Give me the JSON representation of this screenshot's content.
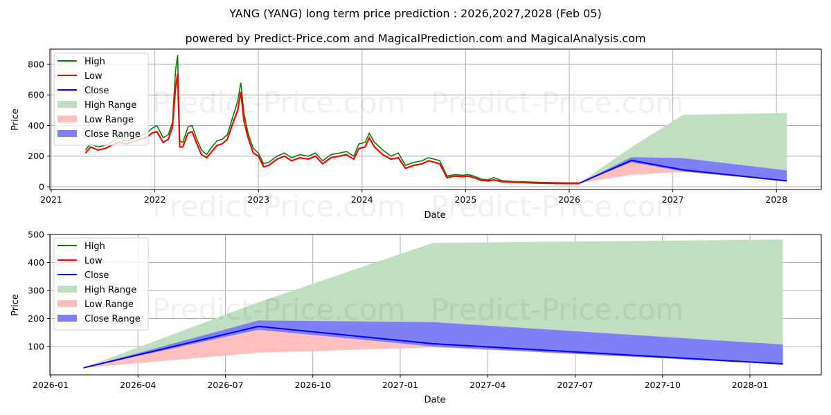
{
  "header": {
    "title": "YANG (YANG) long term price prediction : 2026,2027,2028 (Feb 05)",
    "subtitle": "powered by Predict-Price.com and MagicalPrediction.com and MagicalAnalysis.com"
  },
  "watermark": "Predict-Price.com",
  "colors": {
    "high": "#008000",
    "low": "#ff0000",
    "close": "#0000ff",
    "high_range": "#c0dec0",
    "low_range": "#ffbfbf",
    "close_range": "#7f7ff7",
    "grid": "#b0b0b0"
  },
  "legend": [
    {
      "label": "High",
      "kind": "line",
      "color": "#008000"
    },
    {
      "label": "Low",
      "kind": "line",
      "color": "#ff0000"
    },
    {
      "label": "Close",
      "kind": "line",
      "color": "#0000ff"
    },
    {
      "label": "High Range",
      "kind": "patch",
      "color": "#c0dec0"
    },
    {
      "label": "Low Range",
      "kind": "patch",
      "color": "#ffbfbf"
    },
    {
      "label": "Close Range",
      "kind": "patch",
      "color": "#7f7ff7"
    }
  ],
  "chart_data": [
    {
      "type": "line",
      "title": "YANG (YANG) long term price prediction : 2026,2027,2028 (Feb 05)",
      "xlabel": "Date",
      "ylabel": "Price",
      "ylim": [
        -15,
        900
      ],
      "xlim": [
        2020.99,
        2028.45
      ],
      "grid": true,
      "legend_position": "upper left",
      "x_ticks": [
        "2021",
        "2022",
        "2023",
        "2024",
        "2025",
        "2026",
        "2027",
        "2028"
      ],
      "y_ticks": [
        0,
        200,
        400,
        600,
        800
      ],
      "history": {
        "x": [
          2021.33,
          2021.38,
          2021.45,
          2021.52,
          2021.58,
          2021.65,
          2021.72,
          2021.78,
          2021.85,
          2021.92,
          2021.97,
          2022.02,
          2022.08,
          2022.13,
          2022.17,
          2022.2,
          2022.22,
          2022.24,
          2022.27,
          2022.32,
          2022.36,
          2022.4,
          2022.45,
          2022.5,
          2022.55,
          2022.6,
          2022.65,
          2022.7,
          2022.75,
          2022.8,
          2022.83,
          2022.86,
          2022.9,
          2022.95,
          2023.0,
          2023.05,
          2023.1,
          2023.18,
          2023.25,
          2023.32,
          2023.4,
          2023.48,
          2023.55,
          2023.62,
          2023.7,
          2023.78,
          2023.85,
          2023.92,
          2023.97,
          2024.03,
          2024.07,
          2024.12,
          2024.2,
          2024.28,
          2024.35,
          2024.42,
          2024.5,
          2024.58,
          2024.64,
          2024.7,
          2024.75,
          2024.82,
          2024.9,
          2024.97,
          2025.02,
          2025.08,
          2025.15,
          2025.22,
          2025.27,
          2025.35,
          2025.45,
          2025.55,
          2025.65,
          2025.75,
          2025.85,
          2025.95,
          2026.1
        ],
        "high": [
          240,
          280,
          260,
          270,
          290,
          320,
          300,
          310,
          330,
          350,
          380,
          400,
          320,
          340,
          420,
          760,
          860,
          300,
          290,
          390,
          400,
          320,
          240,
          210,
          260,
          300,
          310,
          340,
          450,
          560,
          680,
          480,
          350,
          250,
          220,
          150,
          160,
          200,
          220,
          190,
          210,
          200,
          220,
          170,
          210,
          220,
          230,
          200,
          280,
          290,
          350,
          290,
          240,
          200,
          220,
          140,
          160,
          170,
          190,
          180,
          170,
          70,
          80,
          75,
          80,
          70,
          50,
          45,
          60,
          40,
          35,
          33,
          30,
          28,
          27,
          26,
          25
        ],
        "low": [
          220,
          260,
          240,
          250,
          270,
          290,
          280,
          290,
          310,
          320,
          350,
          360,
          290,
          310,
          390,
          650,
          740,
          260,
          260,
          350,
          360,
          290,
          210,
          190,
          230,
          270,
          280,
          310,
          410,
          500,
          620,
          430,
          320,
          220,
          200,
          130,
          140,
          180,
          200,
          170,
          190,
          180,
          200,
          150,
          190,
          200,
          210,
          180,
          250,
          260,
          320,
          260,
          210,
          180,
          190,
          120,
          140,
          150,
          170,
          160,
          150,
          60,
          70,
          65,
          70,
          60,
          42,
          38,
          45,
          33,
          30,
          28,
          25,
          23,
          22,
          21,
          21
        ]
      },
      "prediction": {
        "x": [
          2026.1,
          2026.6,
          2027.1,
          2028.1
        ],
        "close": [
          24,
          172,
          110,
          38
        ],
        "close_range_top": [
          24,
          193,
          187,
          107
        ],
        "high_range_top": [
          24,
          258,
          470,
          482
        ],
        "low_range_bottom": [
          24,
          78,
          97,
          38
        ]
      }
    },
    {
      "type": "area",
      "title": "",
      "xlabel": "Date",
      "ylabel": "Price",
      "ylim": [
        0,
        500
      ],
      "grid": true,
      "legend_position": "upper left",
      "x_ticks": [
        "2026-01",
        "2026-04",
        "2026-07",
        "2026-10",
        "2027-01",
        "2027-04",
        "2027-07",
        "2027-10",
        "2028-01"
      ],
      "y_ticks": [
        100,
        200,
        300,
        400,
        500
      ],
      "x_dates": [
        "2026-02-05",
        "2026-08-05",
        "2027-02-05",
        "2028-02-05"
      ],
      "series": [
        {
          "name": "Close",
          "values": [
            24,
            172,
            110,
            38
          ]
        },
        {
          "name": "Close Range (upper)",
          "values": [
            24,
            193,
            187,
            107
          ]
        },
        {
          "name": "Close Range (lower)",
          "values": [
            24,
            160,
            100,
            36
          ]
        },
        {
          "name": "High Range (upper)",
          "values": [
            24,
            258,
            470,
            482
          ]
        },
        {
          "name": "Low Range (lower)",
          "values": [
            24,
            78,
            97,
            38
          ]
        }
      ]
    }
  ]
}
